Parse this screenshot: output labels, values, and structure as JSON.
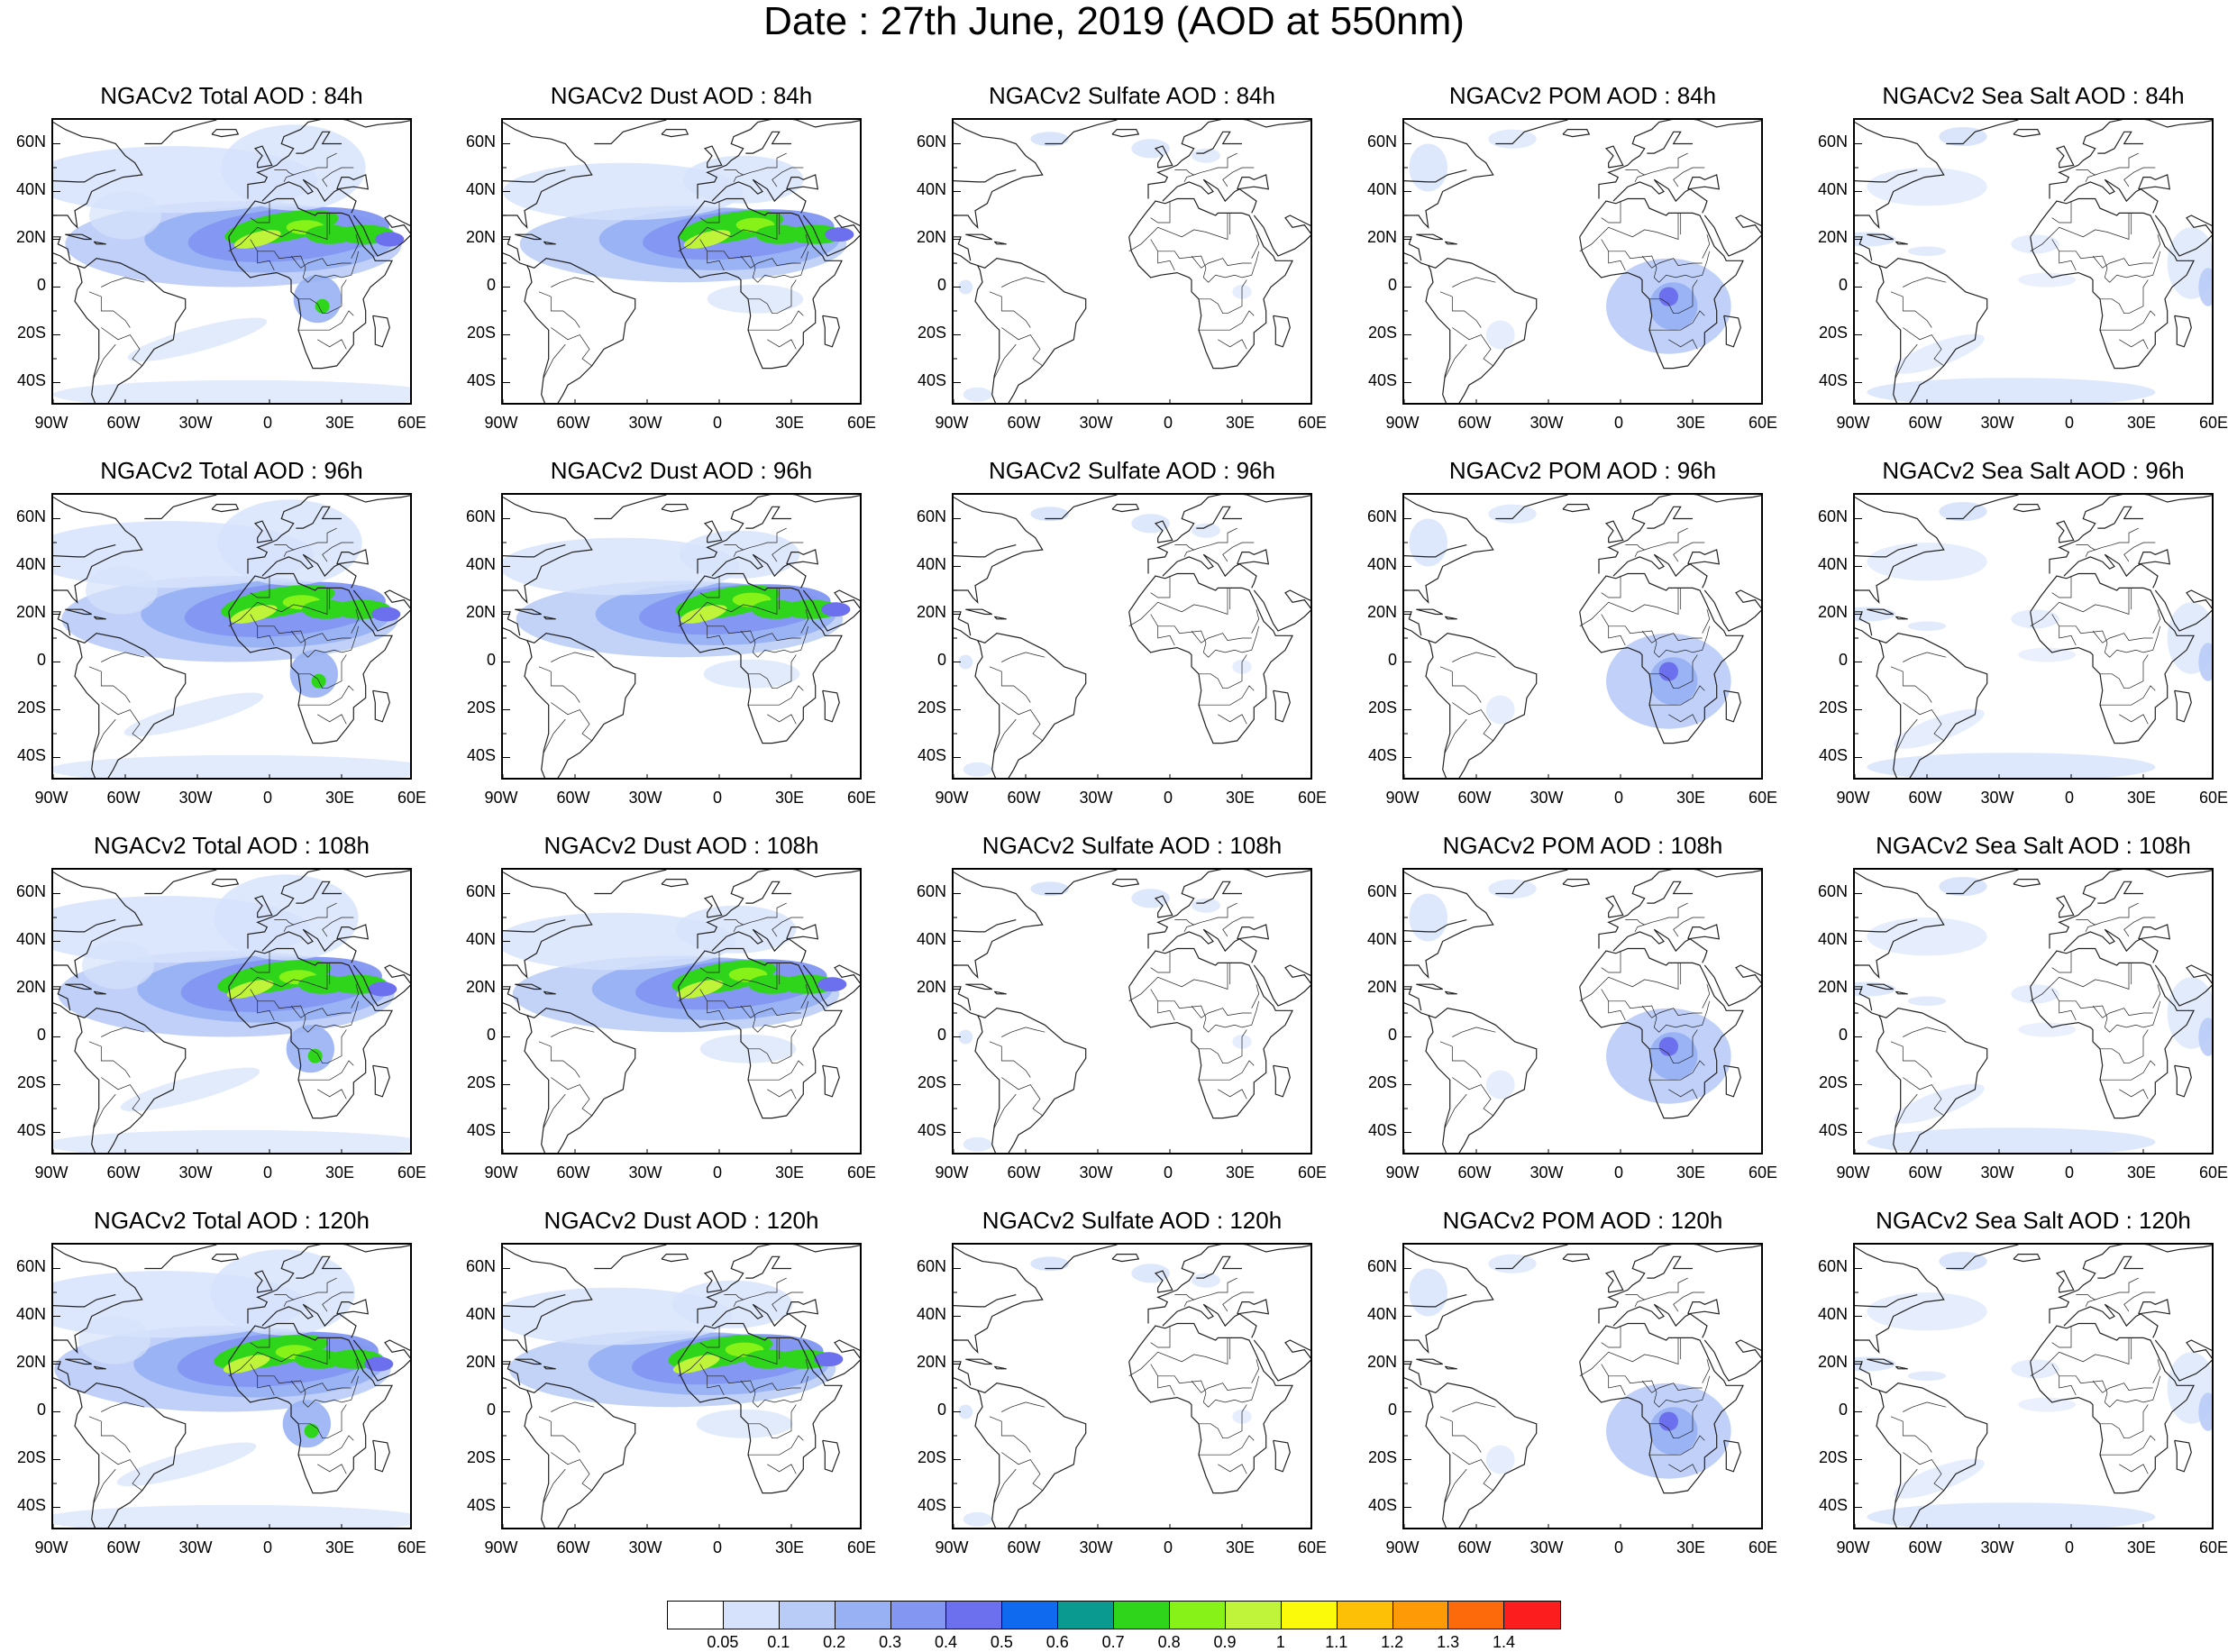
{
  "title": "Date : 27th June, 2019 (AOD at 550nm)",
  "lat_ticks": [
    "60N",
    "40N",
    "20N",
    "0",
    "20S",
    "40S"
  ],
  "lon_ticks": [
    "90W",
    "60W",
    "30W",
    "0",
    "30E",
    "60E"
  ],
  "rows": [
    {
      "hour": "84h",
      "panels": [
        {
          "title": "NGACv2 Total AOD : 84h",
          "species": "total"
        },
        {
          "title": "NGACv2 Dust AOD : 84h",
          "species": "dust"
        },
        {
          "title": "NGACv2 Sulfate AOD : 84h",
          "species": "sulfate"
        },
        {
          "title": "NGACv2 POM AOD : 84h",
          "species": "pom"
        },
        {
          "title": "NGACv2 Sea Salt AOD : 84h",
          "species": "seasalt"
        }
      ]
    },
    {
      "hour": "96h",
      "panels": [
        {
          "title": "NGACv2 Total AOD : 96h",
          "species": "total"
        },
        {
          "title": "NGACv2 Dust AOD : 96h",
          "species": "dust"
        },
        {
          "title": "NGACv2 Sulfate AOD : 96h",
          "species": "sulfate"
        },
        {
          "title": "NGACv2 POM AOD : 96h",
          "species": "pom"
        },
        {
          "title": "NGACv2 Sea Salt AOD : 96h",
          "species": "seasalt"
        }
      ]
    },
    {
      "hour": "108h",
      "panels": [
        {
          "title": "NGACv2 Total AOD : 108h",
          "species": "total"
        },
        {
          "title": "NGACv2 Dust AOD : 108h",
          "species": "dust"
        },
        {
          "title": "NGACv2 Sulfate AOD : 108h",
          "species": "sulfate"
        },
        {
          "title": "NGACv2 POM AOD : 108h",
          "species": "pom"
        },
        {
          "title": "NGACv2 Sea Salt AOD : 108h",
          "species": "seasalt"
        }
      ]
    },
    {
      "hour": "120h",
      "panels": [
        {
          "title": "NGACv2 Total AOD : 120h",
          "species": "total"
        },
        {
          "title": "NGACv2 Dust AOD : 120h",
          "species": "dust"
        },
        {
          "title": "NGACv2 Sulfate AOD : 120h",
          "species": "sulfate"
        },
        {
          "title": "NGACv2 POM AOD : 120h",
          "species": "pom"
        },
        {
          "title": "NGACv2 Sea Salt  AOD : 120h",
          "species": "seasalt"
        }
      ]
    }
  ],
  "colorbar": {
    "labels": [
      "0.05",
      "0.1",
      "0.2",
      "0.3",
      "0.4",
      "0.5",
      "0.6",
      "0.7",
      "0.8",
      "0.9",
      "1",
      "1.1",
      "1.2",
      "1.3",
      "1.4"
    ],
    "colors": [
      "#ffffff",
      "#d6e2fb",
      "#b9cbf7",
      "#98b1f4",
      "#8296f2",
      "#6c6fee",
      "#0f6aef",
      "#0a9a8f",
      "#2fd51a",
      "#86f217",
      "#bff43a",
      "#fafa0a",
      "#fdc007",
      "#fe9a06",
      "#fc6a0b",
      "#fc1e1e"
    ]
  }
}
